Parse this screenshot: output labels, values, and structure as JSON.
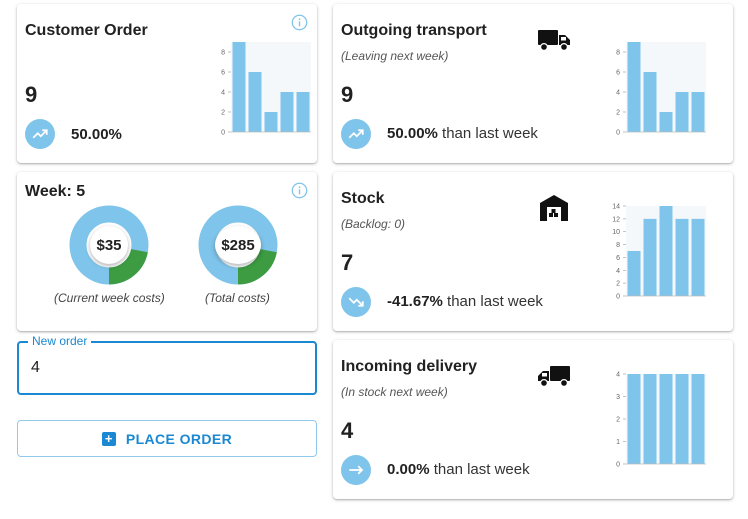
{
  "customer_order": {
    "title": "Customer Order",
    "value": "9",
    "change": "50.00%",
    "trend": "up",
    "chart": {
      "values": [
        9,
        6,
        2,
        4,
        4
      ],
      "ticks": [
        "0",
        "2",
        "4",
        "6",
        "8"
      ],
      "max": 9
    }
  },
  "outgoing_transport": {
    "title": "Outgoing transport",
    "subtitle": "(Leaving next week)",
    "value": "9",
    "change": "50.00%",
    "suffix": "than last week",
    "trend": "up",
    "chart": {
      "values": [
        9,
        6,
        2,
        4,
        4
      ],
      "ticks": [
        "0",
        "2",
        "4",
        "6",
        "8"
      ],
      "max": 9
    }
  },
  "week": {
    "title": "Week: 5",
    "current_cost": "$35",
    "current_label": "(Current week costs)",
    "current_fraction": 0.22,
    "total_cost": "$285",
    "total_label": "(Total costs)",
    "total_fraction": 0.22
  },
  "stock": {
    "title": "Stock",
    "subtitle": "(Backlog: 0)",
    "value": "7",
    "change": "-41.67%",
    "suffix": "than last week",
    "trend": "down",
    "chart": {
      "values": [
        7,
        12,
        14,
        12,
        12
      ],
      "ticks": [
        "0",
        "2",
        "4",
        "6",
        "8",
        "10",
        "12",
        "14"
      ],
      "max": 14
    }
  },
  "incoming_delivery": {
    "title": "Incoming delivery",
    "subtitle": "(In stock next week)",
    "value": "4",
    "change": "0.00%",
    "suffix": "than last week",
    "trend": "flat",
    "chart": {
      "values": [
        4,
        4,
        4,
        4,
        4
      ],
      "ticks": [
        "0",
        "1",
        "2",
        "3",
        "4"
      ],
      "max": 4
    }
  },
  "order_form": {
    "label": "New order",
    "value": "4",
    "button_label": "PLACE ORDER"
  },
  "colors": {
    "accent": "#1a88d2",
    "bar": "#7fc4ea",
    "donut_main": "#7fc4ea",
    "donut_part": "#3d9b41"
  },
  "icons": [
    "info-icon",
    "trending-up-icon",
    "trending-down-icon",
    "trending-flat-icon",
    "truck-icon",
    "warehouse-icon",
    "plus-box-icon"
  ]
}
